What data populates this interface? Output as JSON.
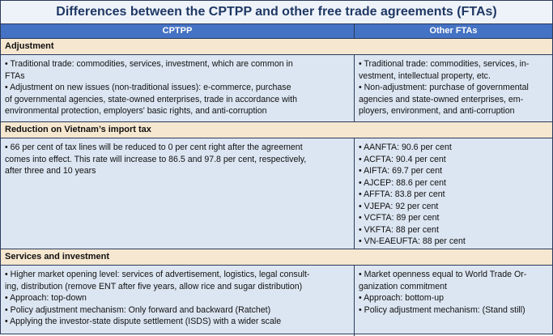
{
  "title": "Differences between the CPTPP and other free trade agreements (FTAs)",
  "columns": [
    "CPTPP",
    "Other FTAs"
  ],
  "sections": [
    {
      "heading": "Adjustment",
      "left": [
        "• Traditional trade: commodities, services, investment, which are common in",
        "FTAs",
        "• Adjustment on new issues (non-traditional issues): e-commerce, purchase",
        "of governmental agencies, state-owned enterprises, trade in accordance with",
        "environmental protection, employers' basic rights, and anti-corruption"
      ],
      "right": [
        "• Traditional trade: commodities, services, in-",
        "vestment, intellectual property, etc.",
        "• Non-adjustment: purchase of governmental",
        "agencies and state-owned enterprises, em-",
        "ployers, environment, and anti-corruption"
      ]
    },
    {
      "heading": "Reduction on Vietnam’s import tax",
      "left": [
        "• 66 per cent of tax lines will be reduced to 0 per cent right after the agreement",
        "comes into effect. This rate will increase to 86.5 and 97.8 per cent, respectively,",
        "after three and 10 years"
      ],
      "right": [
        "• AANFTA: 90.6 per cent",
        "• ACFTA: 90.4 per cent",
        "• AIFTA: 69.7 per cent",
        "• AJCEP: 88.6 per cent",
        "• AFFTA: 83.8 per cent",
        "• VJEPA: 92 per cent",
        "• VCFTA: 89 per cent",
        "• VKFTA: 88 per cent",
        "• VN-EAEUFTA: 88 per cent"
      ]
    },
    {
      "heading": "Services and investment",
      "left": [
        "• Higher market opening level: services of advertisement, logistics, legal consult-",
        "ing, distribution (remove ENT after five years, allow rice and sugar distribution)",
        "• Approach: top-down",
        "• Policy adjustment mechanism: Only forward and backward (Ratchet)",
        "• Applying the investor-state dispute settlement (ISDS) with a wider scale"
      ],
      "right": [
        "• Market openness equal to World Trade Or-",
        "ganization commitment",
        "• Approach: bottom-up",
        "• Policy adjustment mechanism: (Stand still)"
      ]
    }
  ]
}
